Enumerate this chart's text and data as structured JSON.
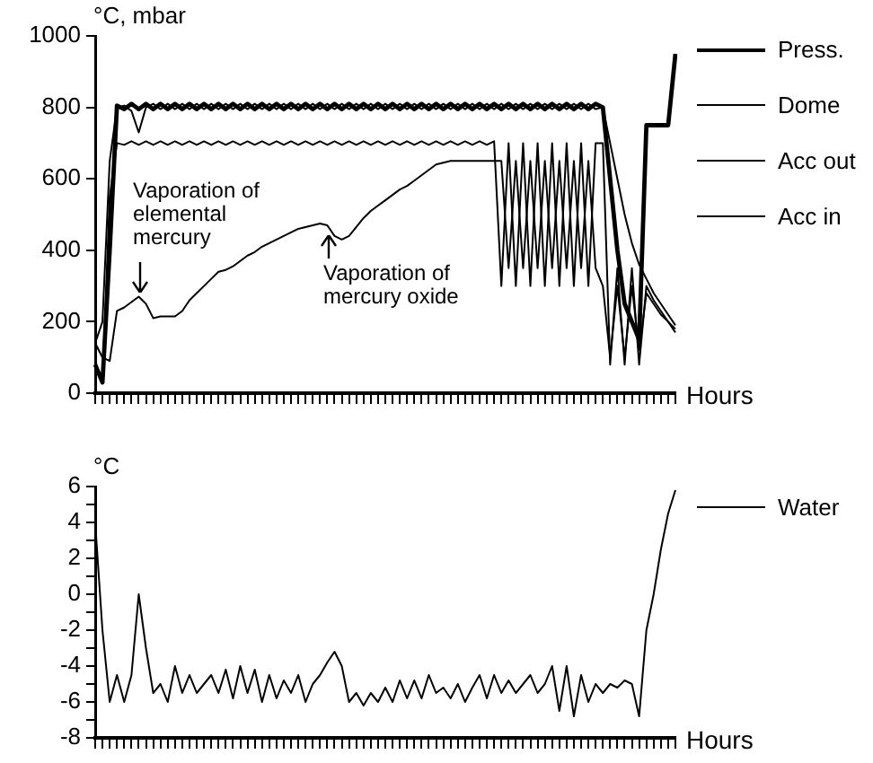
{
  "chart_data": [
    {
      "type": "line",
      "ylabel": "°C, mbar",
      "xlabel": "Hours",
      "legend": "right",
      "tick_labels": "y",
      "categories": [
        null,
        null,
        null,
        null,
        null,
        null,
        null,
        null,
        null,
        null,
        null,
        null,
        null,
        null,
        null,
        null,
        null,
        null,
        null,
        null,
        null,
        null,
        null,
        null,
        null,
        null,
        null,
        null,
        null,
        null,
        null,
        null,
        null,
        null,
        null,
        null,
        null,
        null,
        null,
        null,
        null,
        null,
        null,
        null,
        null,
        null,
        null,
        null,
        null,
        null,
        null,
        null,
        null,
        null,
        null,
        null,
        null,
        null,
        null,
        null,
        null,
        null,
        null,
        null,
        null,
        null,
        null,
        null,
        null,
        null,
        null,
        null,
        null,
        null,
        null,
        null,
        null,
        null,
        null,
        null,
        null
      ],
      "ylim": [
        0,
        1000
      ],
      "yticks": [
        0,
        200,
        400,
        600,
        800,
        1000
      ],
      "annotations": [
        "Vaporation of elemental mercury",
        "Vaporation of mercury oxide"
      ],
      "series": [
        {
          "name": "Press.",
          "color": "#000000",
          "values": [
            80,
            30,
            400,
            805,
            795,
            810,
            795,
            810,
            795,
            810,
            795,
            810,
            795,
            810,
            795,
            810,
            795,
            810,
            795,
            810,
            795,
            810,
            795,
            810,
            795,
            810,
            795,
            810,
            795,
            810,
            795,
            810,
            795,
            810,
            795,
            810,
            795,
            810,
            795,
            810,
            795,
            810,
            795,
            810,
            795,
            810,
            795,
            810,
            795,
            810,
            795,
            810,
            795,
            810,
            795,
            810,
            795,
            810,
            795,
            810,
            795,
            810,
            795,
            810,
            795,
            810,
            795,
            810,
            795,
            810,
            800,
            600,
            400,
            250,
            200,
            150,
            750,
            750,
            750,
            750,
            950
          ]
        },
        {
          "name": "Dome",
          "color": "#000000",
          "values": [
            140,
            200,
            650,
            800,
            805,
            790,
            730,
            800,
            810,
            795,
            810,
            795,
            810,
            795,
            810,
            795,
            810,
            795,
            810,
            795,
            810,
            795,
            810,
            795,
            810,
            795,
            810,
            795,
            810,
            795,
            810,
            795,
            810,
            795,
            810,
            795,
            810,
            795,
            810,
            795,
            810,
            795,
            810,
            795,
            810,
            795,
            810,
            795,
            810,
            795,
            810,
            795,
            810,
            795,
            810,
            795,
            810,
            795,
            810,
            795,
            810,
            795,
            810,
            795,
            810,
            795,
            810,
            795,
            810,
            795,
            800,
            700,
            600,
            500,
            420,
            360,
            320,
            280,
            250,
            220,
            190
          ]
        },
        {
          "name": "Acc out",
          "color": "#000000",
          "values": [
            70,
            30,
            550,
            700,
            695,
            705,
            695,
            705,
            695,
            705,
            695,
            705,
            695,
            705,
            695,
            705,
            695,
            705,
            695,
            705,
            695,
            705,
            695,
            705,
            695,
            705,
            695,
            705,
            695,
            705,
            695,
            705,
            695,
            705,
            695,
            705,
            695,
            705,
            695,
            705,
            695,
            705,
            695,
            705,
            695,
            705,
            695,
            705,
            695,
            705,
            695,
            705,
            695,
            705,
            695,
            705,
            300,
            700,
            300,
            700,
            300,
            700,
            300,
            700,
            300,
            700,
            300,
            700,
            300,
            700,
            700,
            80,
            350,
            80,
            350,
            80,
            300,
            260,
            230,
            200,
            170
          ]
        },
        {
          "name": "Acc in",
          "color": "#000000",
          "values": [
            140,
            100,
            90,
            230,
            240,
            255,
            270,
            250,
            210,
            215,
            215,
            215,
            230,
            260,
            280,
            300,
            320,
            340,
            345,
            355,
            370,
            385,
            395,
            410,
            420,
            430,
            440,
            450,
            460,
            465,
            470,
            475,
            470,
            440,
            430,
            440,
            465,
            490,
            510,
            525,
            540,
            555,
            570,
            580,
            595,
            610,
            625,
            640,
            645,
            650,
            650,
            650,
            650,
            650,
            650,
            650,
            650,
            350,
            650,
            350,
            650,
            350,
            650,
            350,
            650,
            350,
            650,
            350,
            650,
            350,
            300,
            100,
            300,
            100,
            300,
            120,
            280,
            250,
            220,
            200,
            180
          ]
        }
      ]
    },
    {
      "type": "line",
      "ylabel": "°C",
      "xlabel": "Hours",
      "legend": "right",
      "tick_labels": "y",
      "categories": [
        null,
        null,
        null,
        null,
        null,
        null,
        null,
        null,
        null,
        null,
        null,
        null,
        null,
        null,
        null,
        null,
        null,
        null,
        null,
        null,
        null,
        null,
        null,
        null,
        null,
        null,
        null,
        null,
        null,
        null,
        null,
        null,
        null,
        null,
        null,
        null,
        null,
        null,
        null,
        null,
        null,
        null,
        null,
        null,
        null,
        null,
        null,
        null,
        null,
        null,
        null,
        null,
        null,
        null,
        null,
        null,
        null,
        null,
        null,
        null,
        null,
        null,
        null,
        null,
        null,
        null,
        null,
        null,
        null,
        null,
        null,
        null,
        null,
        null,
        null,
        null,
        null,
        null,
        null,
        null,
        null
      ],
      "ylim": [
        -8,
        6
      ],
      "yticks": [
        -8,
        {
          "value": -7,
          "label": null
        },
        -6,
        {
          "value": -5,
          "label": null
        },
        -4,
        {
          "value": -3,
          "label": null
        },
        -2,
        {
          "value": -1,
          "label": null
        },
        0,
        {
          "value": 1,
          "label": null
        },
        2,
        {
          "value": 3,
          "label": null
        },
        4,
        {
          "value": 5,
          "label": null
        },
        6
      ],
      "series": [
        {
          "name": "Water",
          "color": "#000000",
          "values": [
            4,
            -2,
            -6,
            -4.5,
            -6,
            -4.5,
            0,
            -3,
            -5.5,
            -5,
            -6,
            -4,
            -5.5,
            -4.5,
            -5.5,
            -5,
            -4.5,
            -5.5,
            -4.2,
            -5.8,
            -4,
            -5.5,
            -4.2,
            -6,
            -4.5,
            -5.8,
            -4.8,
            -5.5,
            -4.5,
            -6,
            -5,
            -4.5,
            -3.8,
            -3.2,
            -4,
            -6,
            -5.5,
            -6.2,
            -5.5,
            -6,
            -5.2,
            -6,
            -4.8,
            -5.8,
            -4.8,
            -5.8,
            -4.5,
            -5.5,
            -5.2,
            -5.8,
            -5,
            -6,
            -5.2,
            -4.5,
            -5.8,
            -4.5,
            -5.5,
            -4.8,
            -5.5,
            -5,
            -4.5,
            -5.5,
            -5,
            -4,
            -6.5,
            -4,
            -6.8,
            -4.5,
            -6,
            -5,
            -5.5,
            -5,
            -5.2,
            -4.8,
            -5,
            -6.8,
            -2,
            0,
            2.5,
            4.5,
            5.8
          ]
        }
      ]
    }
  ]
}
